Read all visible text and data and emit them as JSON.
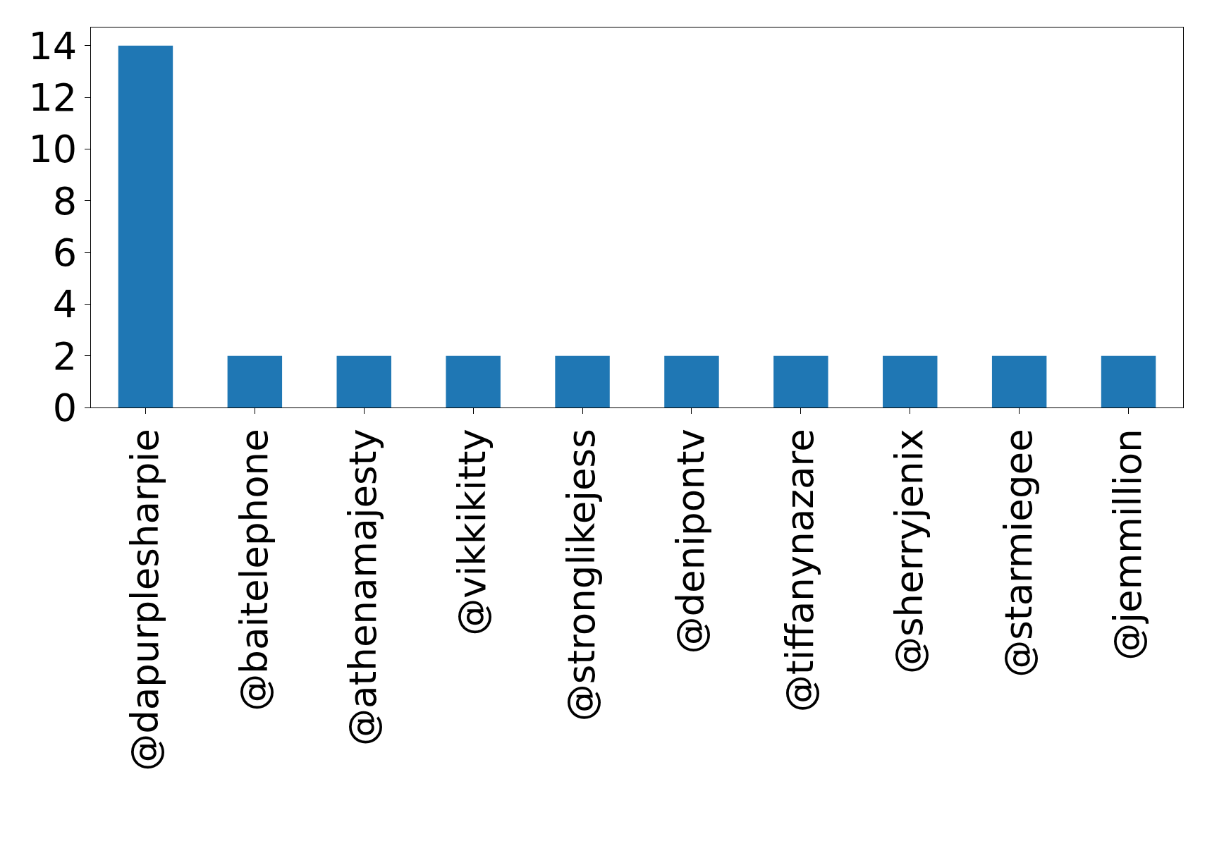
{
  "chart_data": {
    "type": "bar",
    "categories": [
      "@dapurplesharpie",
      "@baitelephone",
      "@athenamajesty",
      "@vikkikitty",
      "@stronglikejess",
      "@denipontv",
      "@tiffanynazare",
      "@sherryjenix",
      "@starmiegee",
      "@jemmillion"
    ],
    "values": [
      14,
      2,
      2,
      2,
      2,
      2,
      2,
      2,
      2,
      2
    ],
    "color": "#1f77b4",
    "ylim": [
      0,
      14.7
    ],
    "yticks": [
      0,
      2,
      4,
      6,
      8,
      10,
      12,
      14
    ]
  }
}
